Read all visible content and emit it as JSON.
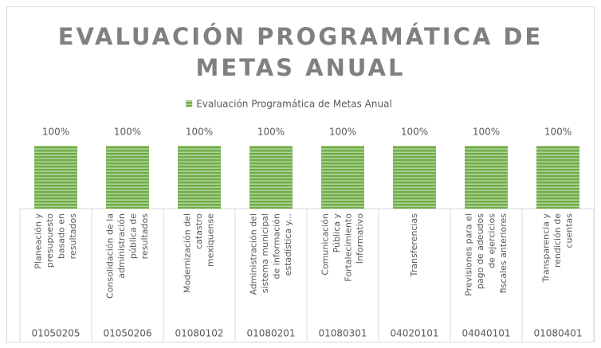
{
  "chart_data": {
    "type": "bar",
    "title": [
      "EVALUACIÓN PROGRAMÁTICA DE",
      "METAS ANUAL"
    ],
    "categories": [
      "01050205",
      "01050206",
      "01080102",
      "01080201",
      "01080301",
      "04020101",
      "04040101",
      "01080401"
    ],
    "category_labels": [
      [
        "Planeación y",
        "presupuesto",
        "basado en",
        "resultados"
      ],
      [
        "Consolidación de la",
        "administración",
        "pública de",
        "resultados"
      ],
      [
        "Modernización del",
        "catastro",
        "mexiquense"
      ],
      [
        "Administración del",
        "sistema municipal",
        "de información",
        "estadística y..."
      ],
      [
        "Comunicación",
        "Pública y",
        "Fortalecimiento",
        "Informativo"
      ],
      [
        "Transferencias"
      ],
      [
        "Previsiones para el",
        "pago de adeudos",
        "de ejercicios",
        "fiscales anteriores"
      ],
      [
        "Transparencia y",
        "rendición de",
        "cuentas"
      ]
    ],
    "series": [
      {
        "name": "Evaluación Programática de Metas Anual",
        "color": "#70ad47",
        "values": [
          100,
          100,
          100,
          100,
          100,
          100,
          100,
          100
        ],
        "value_labels": [
          "100%",
          "100%",
          "100%",
          "100%",
          "100%",
          "100%",
          "100%",
          "100%"
        ]
      }
    ],
    "ylim": [
      0,
      100
    ],
    "legend": "top"
  }
}
